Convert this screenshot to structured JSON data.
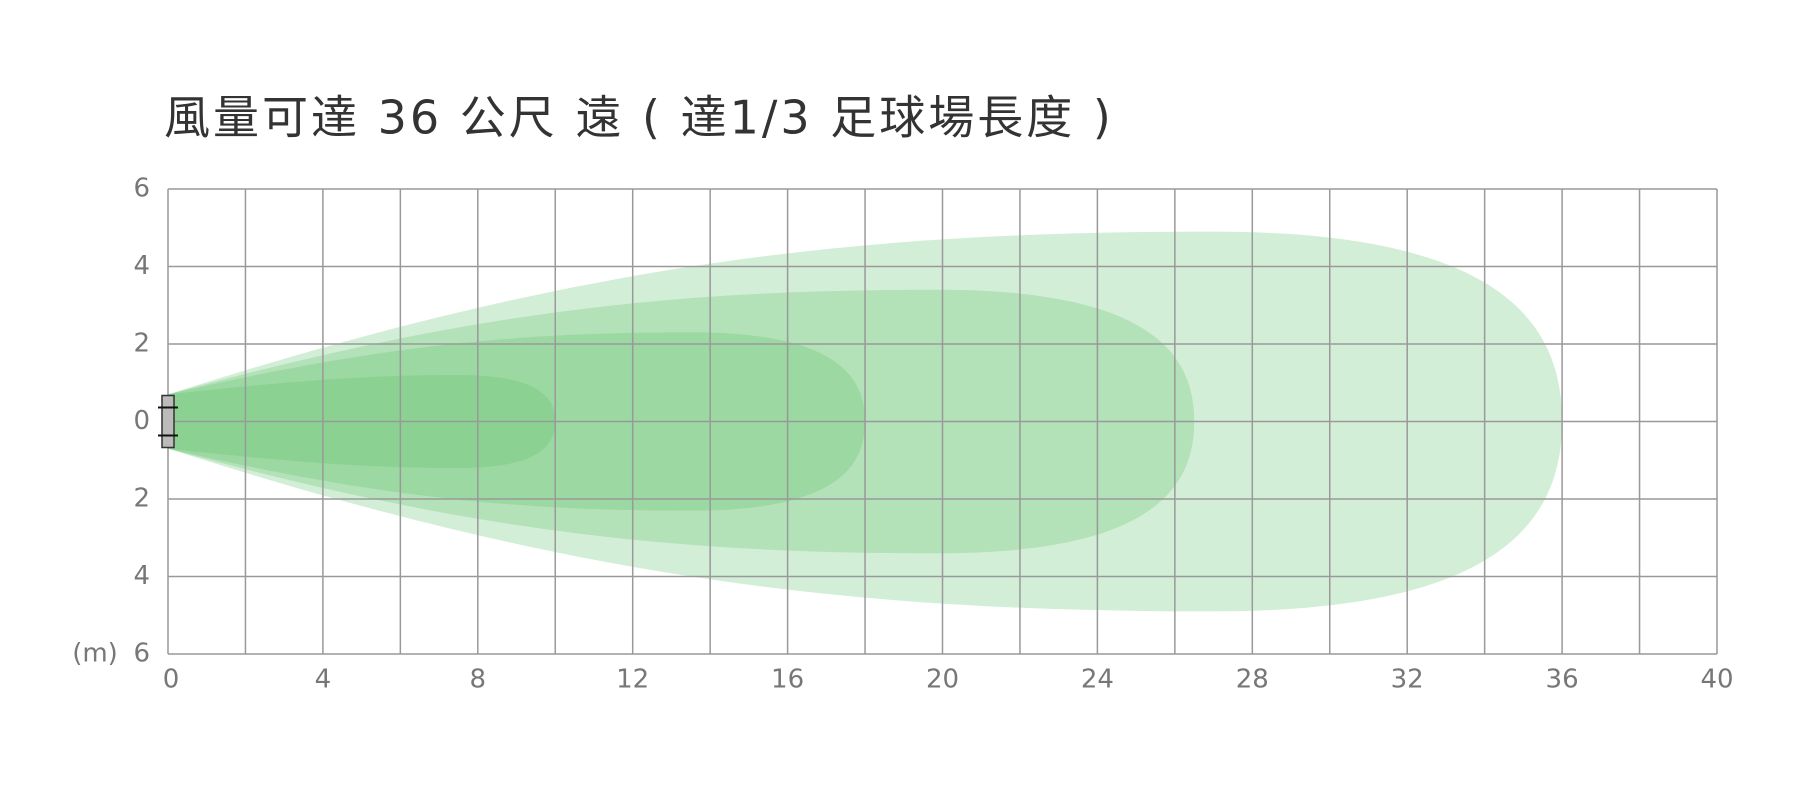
{
  "chart_data": {
    "type": "area",
    "title": "風量可達 36 公尺 遠 ( 達1/3 足球場長度 )",
    "y_unit": "(m)",
    "xlim": [
      0,
      40
    ],
    "xticks": [
      0,
      4,
      8,
      12,
      16,
      20,
      24,
      28,
      32,
      36,
      40
    ],
    "x_minor_ticks": [
      2,
      6,
      10,
      14,
      18,
      22,
      26,
      30,
      34,
      38
    ],
    "ylim": [
      -6,
      6
    ],
    "yticks": [
      {
        "value": 6,
        "label": "6"
      },
      {
        "value": 4,
        "label": "4"
      },
      {
        "value": 2,
        "label": "2"
      },
      0,
      {
        "value": -2,
        "label": "2"
      },
      {
        "value": -4,
        "label": "4"
      },
      {
        "value": -6,
        "label": "6"
      }
    ],
    "grid": true,
    "series": [
      {
        "color": "#5cbf66",
        "reach": 36,
        "half_width": 4.9
      },
      {
        "color": "#5cbf66",
        "reach": 26.5,
        "half_width": 3.4
      },
      {
        "color": "#5cbf66",
        "reach": 18,
        "half_width": 2.3
      },
      {
        "color": "#5cbf66",
        "reach": 10,
        "half_width": 1.2
      }
    ]
  }
}
